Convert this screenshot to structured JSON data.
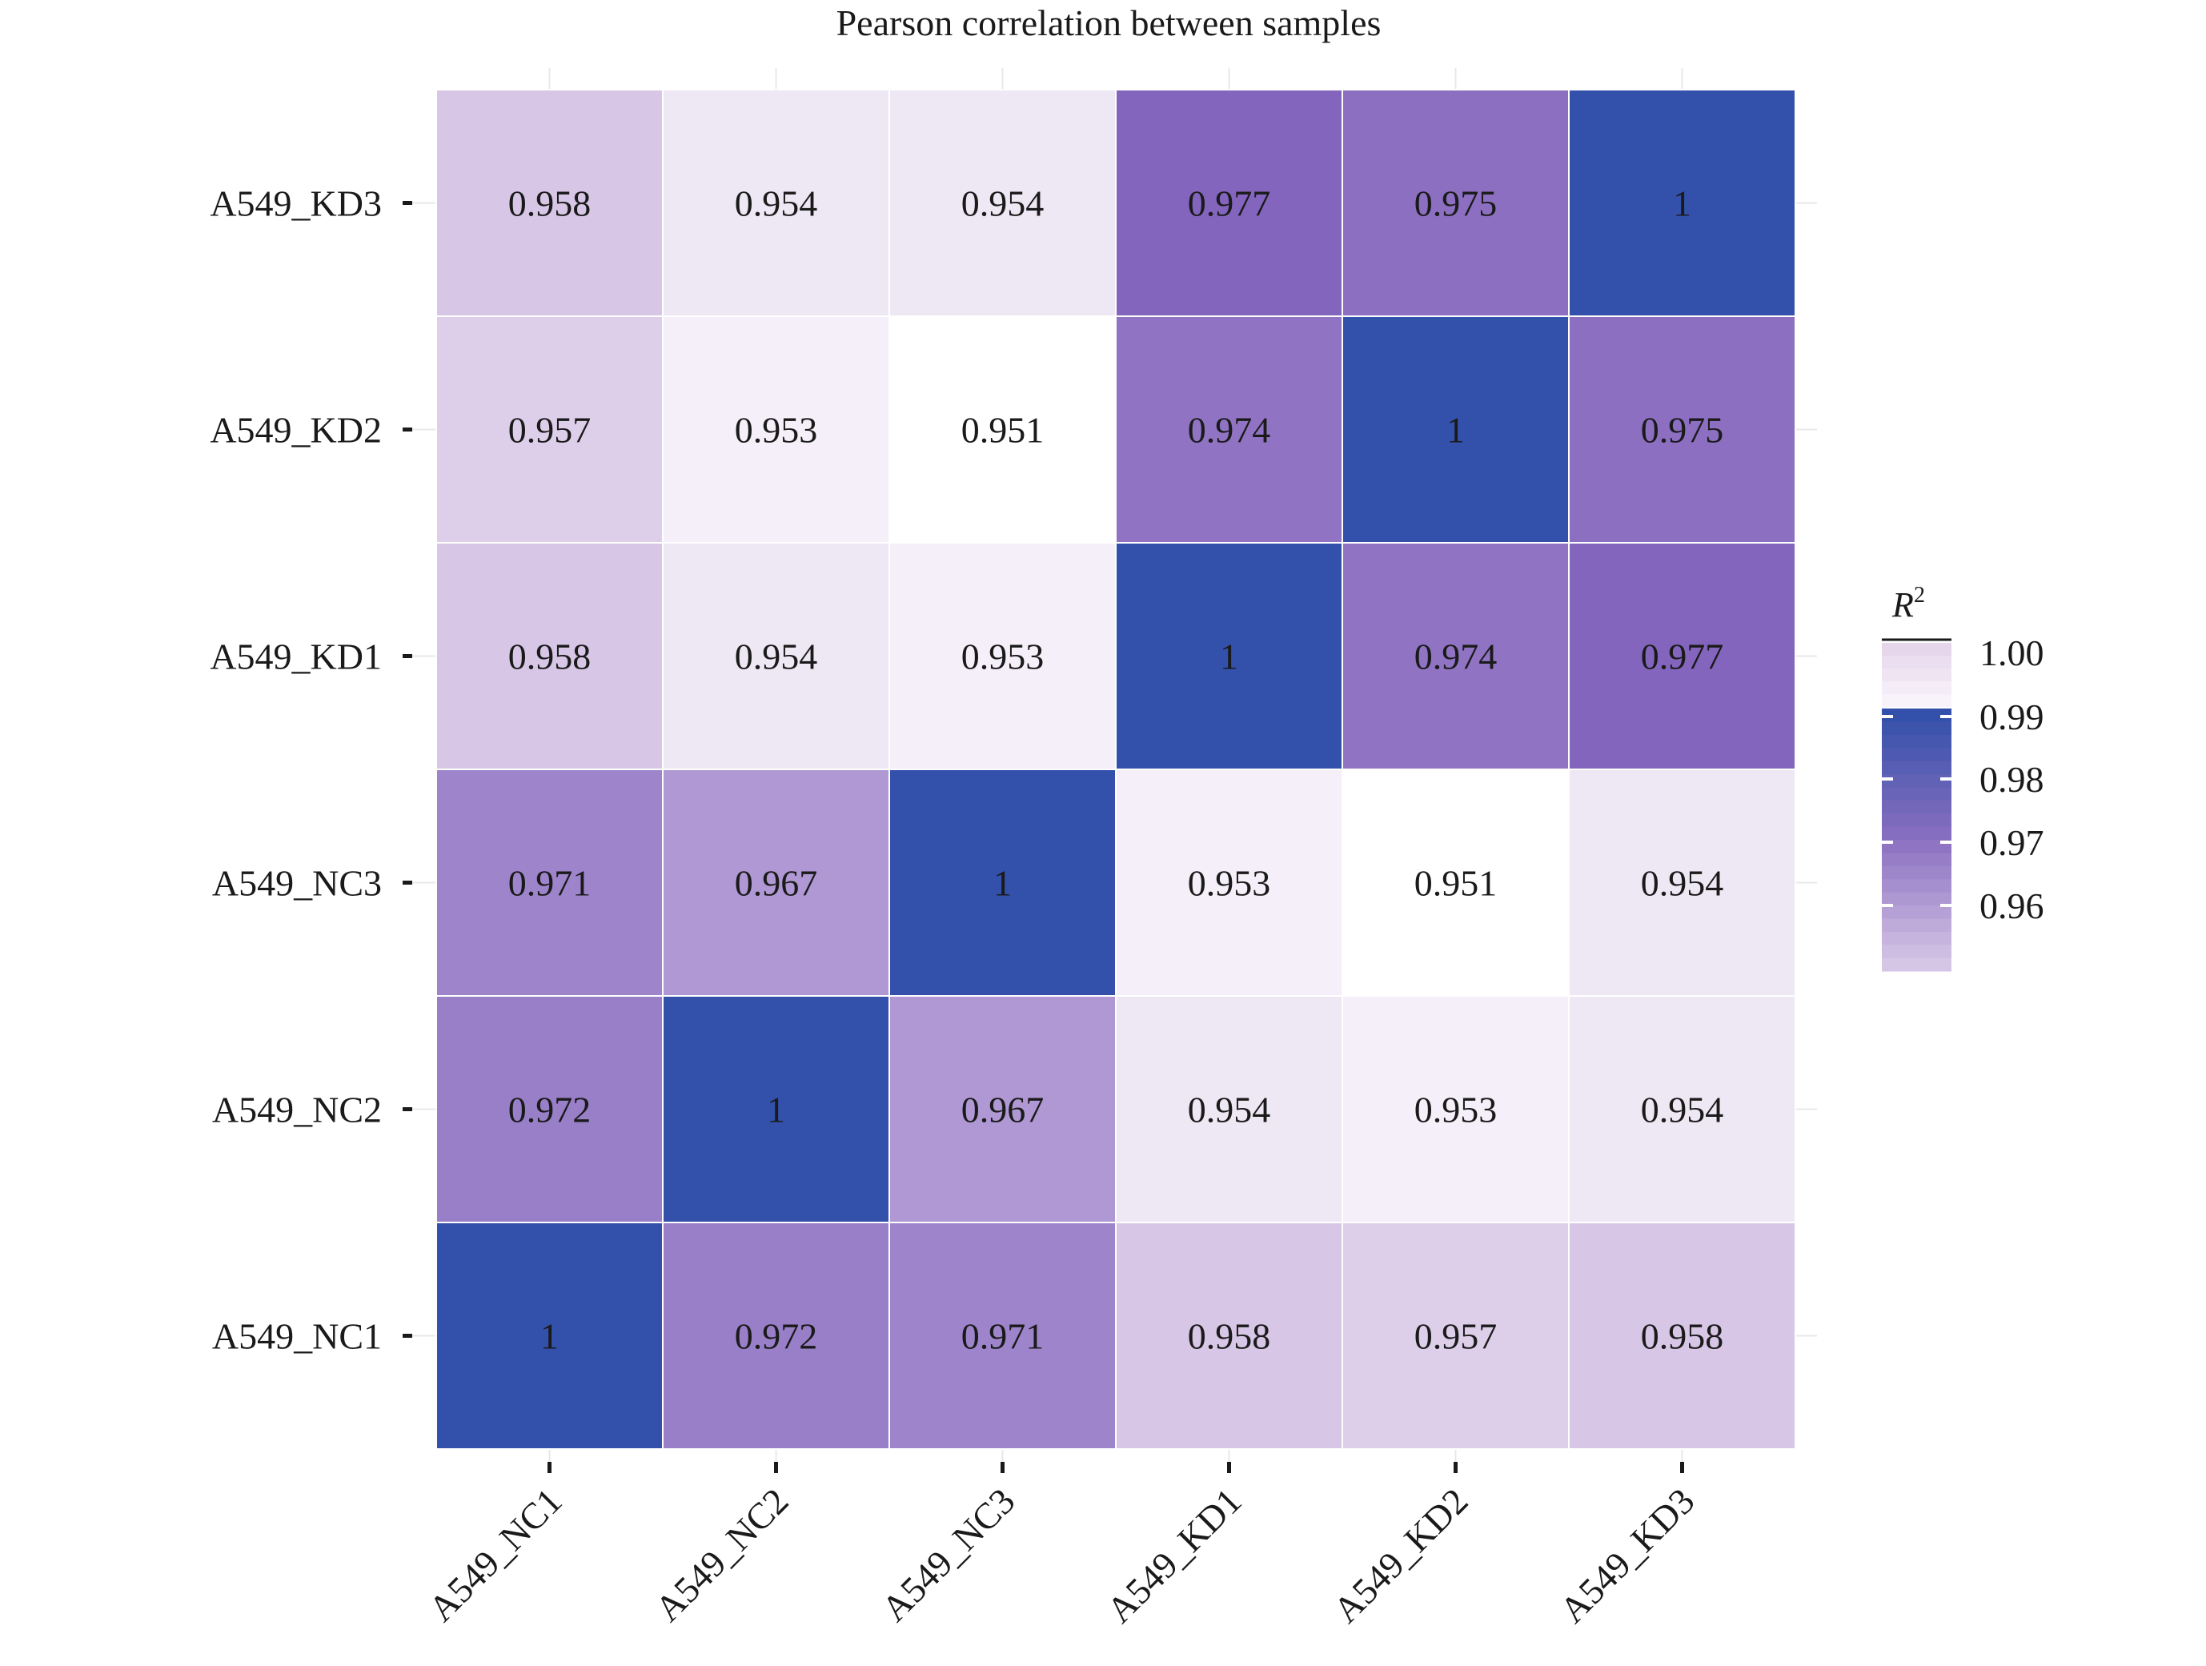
{
  "chart_data": {
    "type": "heatmap",
    "title": "Pearson correlation between samples",
    "xlabel": "",
    "ylabel": "",
    "x_categories": [
      "A549_NC1",
      "A549_NC2",
      "A549_NC3",
      "A549_KD1",
      "A549_KD2",
      "A549_KD3"
    ],
    "y_categories": [
      "A549_NC1",
      "A549_NC2",
      "A549_NC3",
      "A549_KD1",
      "A549_KD2",
      "A549_KD3"
    ],
    "values": [
      [
        1,
        0.972,
        0.971,
        0.958,
        0.957,
        0.958
      ],
      [
        0.972,
        1,
        0.967,
        0.954,
        0.953,
        0.954
      ],
      [
        0.971,
        0.967,
        1,
        0.953,
        0.951,
        0.954
      ],
      [
        0.958,
        0.954,
        0.953,
        1,
        0.974,
        0.977
      ],
      [
        0.957,
        0.953,
        0.951,
        0.974,
        1,
        0.975
      ],
      [
        0.958,
        0.954,
        0.954,
        0.977,
        0.975,
        1
      ]
    ],
    "value_labels": [
      [
        "1",
        "0.972",
        "0.971",
        "0.958",
        "0.957",
        "0.958"
      ],
      [
        "0.972",
        "1",
        "0.967",
        "0.954",
        "0.953",
        "0.954"
      ],
      [
        "0.971",
        "0.967",
        "1",
        "0.953",
        "0.951",
        "0.954"
      ],
      [
        "0.958",
        "0.954",
        "0.953",
        "1",
        "0.974",
        "0.977"
      ],
      [
        "0.957",
        "0.953",
        "0.951",
        "0.974",
        "1",
        "0.975"
      ],
      [
        "0.958",
        "0.954",
        "0.954",
        "0.977",
        "0.975",
        "1"
      ]
    ],
    "colors": {
      "low": "#ffffff",
      "mid": "#d7c6e6",
      "high": "#8365bd",
      "diagonal": "#3351aa",
      "text_dark": "#1a1a1a",
      "text_light": "#ffffff"
    },
    "legend": {
      "title": "R",
      "title_superscript": "2",
      "ticks": [
        "1.00",
        "0.99",
        "0.98",
        "0.97",
        "0.96"
      ],
      "placement": "right"
    },
    "grid": true
  }
}
